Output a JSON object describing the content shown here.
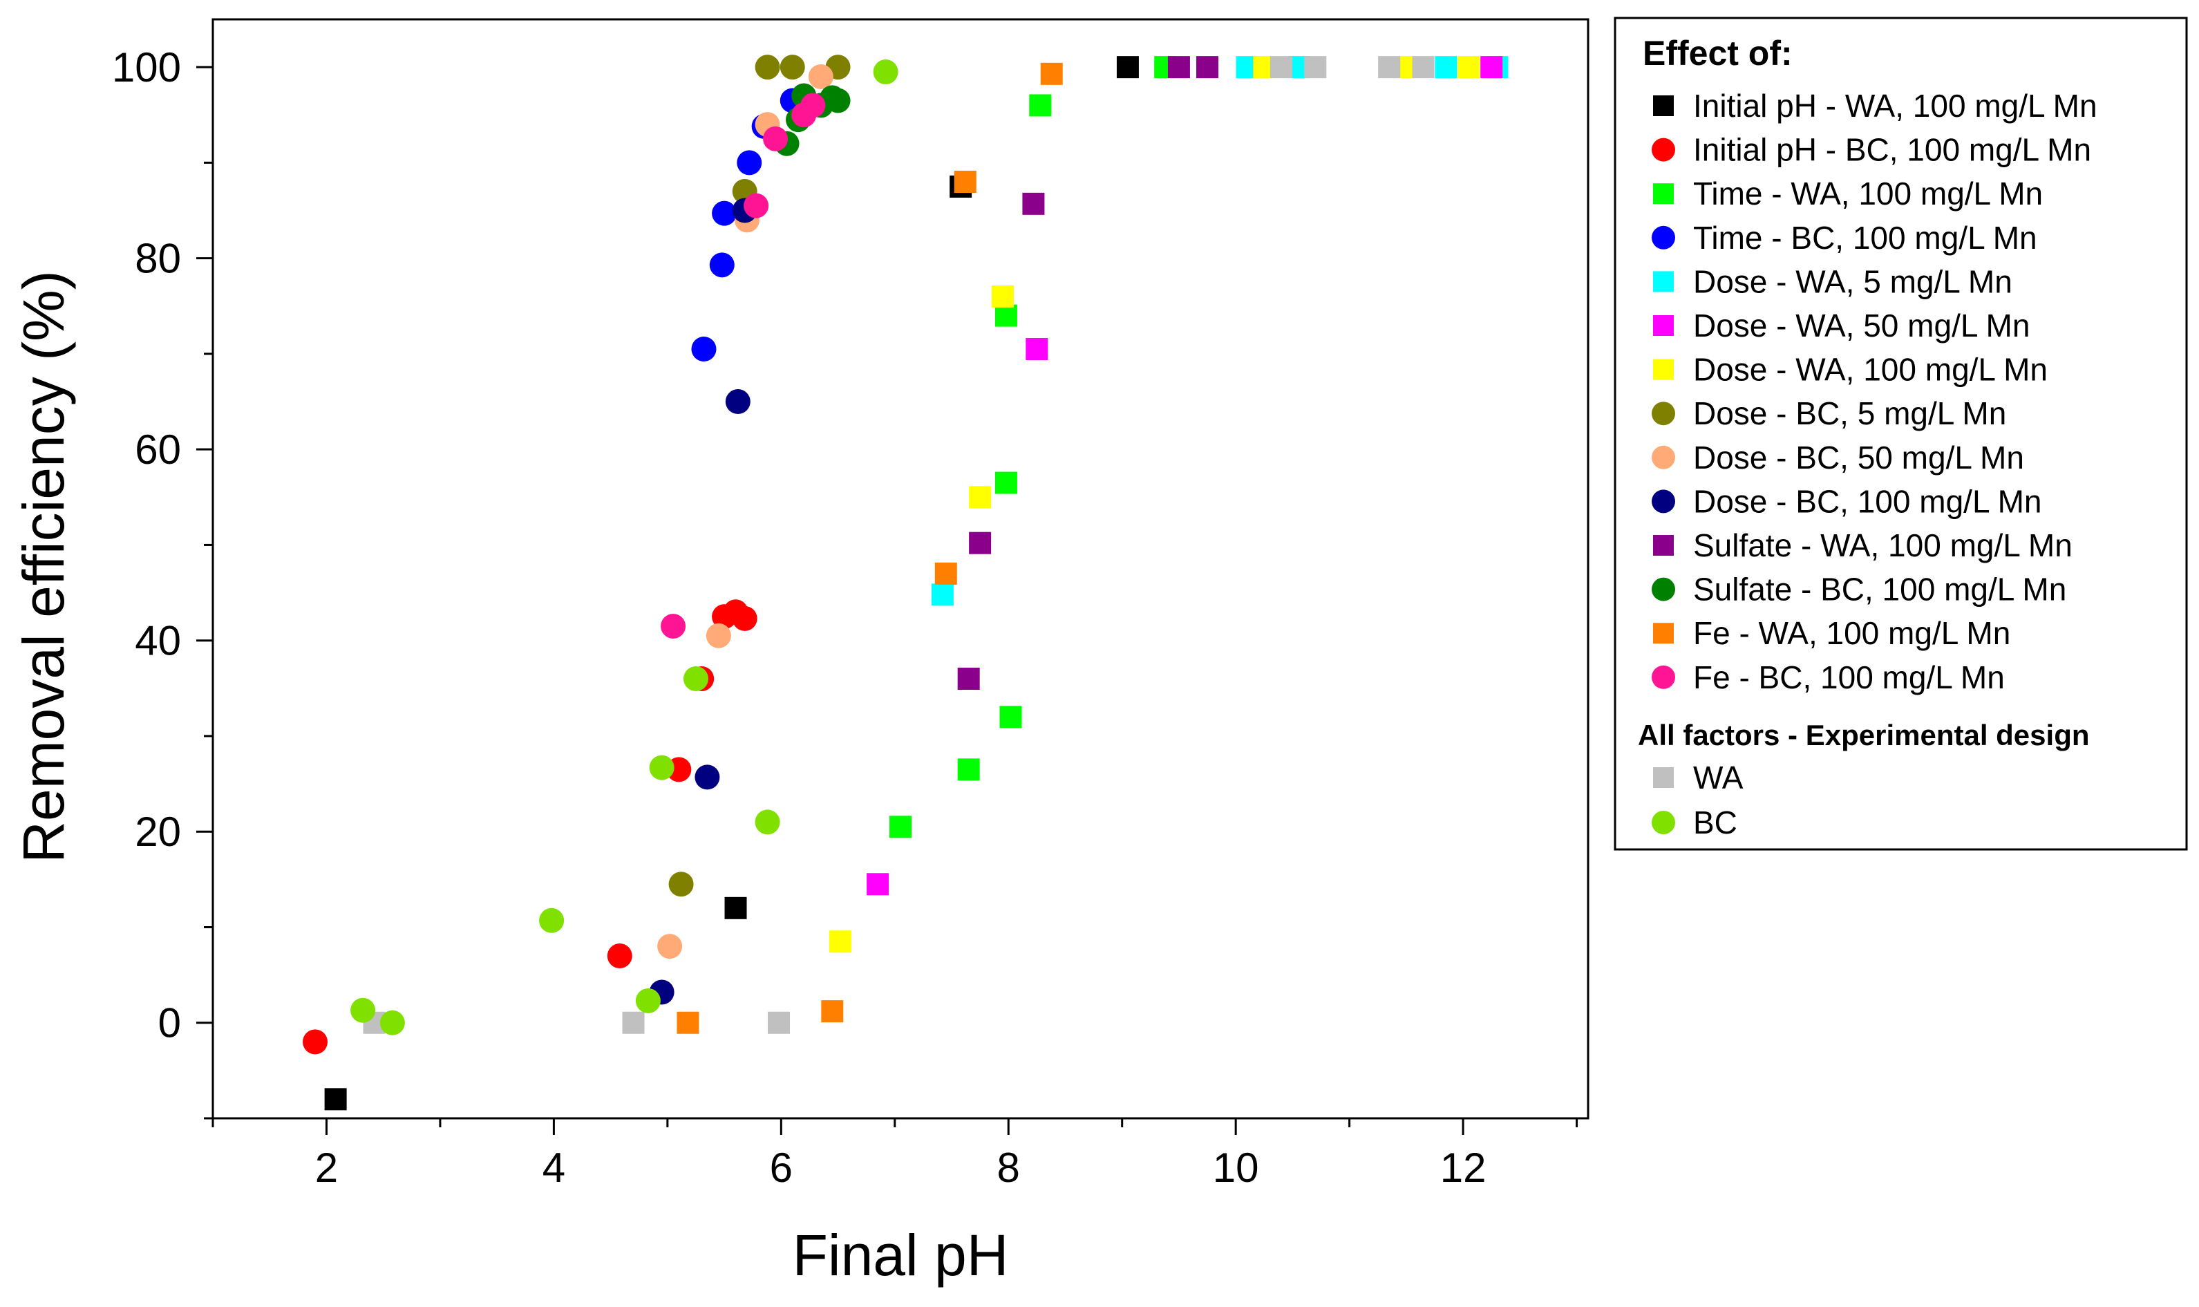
{
  "chart_data": {
    "type": "scatter",
    "xlabel": "Final pH",
    "ylabel": "Removal efficiency (%)",
    "xlim": [
      1,
      13.1
    ],
    "ylim": [
      -10,
      105
    ],
    "x_ticks": [
      2,
      4,
      6,
      8,
      10,
      12
    ],
    "x_tick_labels": [
      "2",
      "4",
      "6",
      "8",
      "10",
      "12"
    ],
    "y_ticks": [
      0,
      20,
      40,
      60,
      80,
      100
    ],
    "y_tick_labels": [
      "0",
      "20",
      "40",
      "60",
      "80",
      "100"
    ],
    "grid": false,
    "legend_position": "right-outside",
    "legend_title": "Effect of:",
    "legend_subtitle": "All factors - Experimental design",
    "series": [
      {
        "name": "Initial pH - WA, 100 mg/L Mn",
        "marker": "square",
        "color": "#000000",
        "points": [
          [
            2.08,
            -8
          ],
          [
            5.6,
            12
          ],
          [
            7.58,
            87.5
          ],
          [
            9.05,
            100
          ]
        ]
      },
      {
        "name": "Initial pH - BC, 100 mg/L Mn",
        "marker": "circle",
        "color": "#ff0000",
        "points": [
          [
            1.9,
            -2
          ],
          [
            4.58,
            7
          ],
          [
            5.1,
            26.5
          ],
          [
            5.3,
            36
          ],
          [
            5.5,
            42.5
          ],
          [
            5.6,
            43
          ],
          [
            5.68,
            42.3
          ]
        ]
      },
      {
        "name": "Time - WA, 100 mg/L Mn",
        "marker": "square",
        "color": "#00ff00",
        "points": [
          [
            7.05,
            20.5
          ],
          [
            7.65,
            26.5
          ],
          [
            8.02,
            32
          ],
          [
            7.98,
            56.5
          ],
          [
            7.98,
            74
          ],
          [
            8.28,
            96
          ],
          [
            9.38,
            100
          ]
        ]
      },
      {
        "name": "Time - BC, 100 mg/L Mn",
        "marker": "circle",
        "color": "#0000ff",
        "points": [
          [
            5.32,
            70.5
          ],
          [
            5.48,
            79.3
          ],
          [
            5.5,
            84.7
          ],
          [
            5.72,
            90
          ],
          [
            5.85,
            93.8
          ],
          [
            6.1,
            96.5
          ],
          [
            6.2,
            97
          ]
        ]
      },
      {
        "name": "Dose - WA, 5 mg/L Mn",
        "marker": "square",
        "color": "#00ffff",
        "points": [
          [
            7.42,
            44.8
          ],
          [
            10.1,
            100
          ],
          [
            10.55,
            100
          ],
          [
            11.85,
            100
          ],
          [
            12.3,
            100
          ]
        ]
      },
      {
        "name": "Dose - WA, 50 mg/L Mn",
        "marker": "square",
        "color": "#ff00ff",
        "points": [
          [
            6.85,
            14.5
          ],
          [
            8.25,
            70.5
          ],
          [
            12.25,
            100
          ]
        ]
      },
      {
        "name": "Dose - WA, 100 mg/L Mn",
        "marker": "square",
        "color": "#ffff00",
        "points": [
          [
            6.52,
            8.5
          ],
          [
            7.75,
            55
          ],
          [
            7.95,
            76
          ],
          [
            10.25,
            100
          ],
          [
            11.5,
            100
          ],
          [
            12.05,
            100
          ]
        ]
      },
      {
        "name": "Dose - BC, 5 mg/L Mn",
        "marker": "circle",
        "color": "#808000",
        "points": [
          [
            5.12,
            14.5
          ],
          [
            5.68,
            87
          ],
          [
            5.88,
            100
          ],
          [
            6.1,
            100
          ],
          [
            6.5,
            100
          ]
        ]
      },
      {
        "name": "Dose - BC, 50 mg/L Mn",
        "marker": "circle",
        "color": "#ffaa77",
        "points": [
          [
            5.02,
            8
          ],
          [
            5.45,
            40.5
          ],
          [
            5.7,
            84
          ],
          [
            5.88,
            94
          ],
          [
            6.35,
            99
          ]
        ]
      },
      {
        "name": "Dose - BC, 100 mg/L Mn",
        "marker": "circle",
        "color": "#000080",
        "points": [
          [
            4.95,
            3.2
          ],
          [
            5.35,
            25.7
          ],
          [
            5.62,
            65
          ],
          [
            5.68,
            85
          ]
        ]
      },
      {
        "name": "Sulfate - WA, 100 mg/L Mn",
        "marker": "square",
        "color": "#8b008b",
        "points": [
          [
            7.65,
            36
          ],
          [
            7.75,
            50.2
          ],
          [
            8.22,
            85.7
          ],
          [
            9.5,
            100
          ],
          [
            9.75,
            100
          ]
        ]
      },
      {
        "name": "Sulfate - BC, 100 mg/L Mn",
        "marker": "circle",
        "color": "#008000",
        "points": [
          [
            6.05,
            92
          ],
          [
            6.15,
            94.5
          ],
          [
            6.2,
            97
          ],
          [
            6.35,
            96
          ],
          [
            6.45,
            96.8
          ],
          [
            6.5,
            96.5
          ]
        ]
      },
      {
        "name": "Fe - WA, 100 mg/L Mn",
        "marker": "square",
        "color": "#ff8000",
        "points": [
          [
            5.18,
            0
          ],
          [
            6.45,
            1.2
          ],
          [
            7.45,
            47
          ],
          [
            7.62,
            88
          ],
          [
            8.38,
            99.3
          ]
        ]
      },
      {
        "name": "Fe - BC, 100 mg/L Mn",
        "marker": "circle",
        "color": "#ff1493",
        "points": [
          [
            5.05,
            41.5
          ],
          [
            5.78,
            85.5
          ],
          [
            5.95,
            92.5
          ],
          [
            6.2,
            95
          ],
          [
            6.28,
            96
          ]
        ]
      },
      {
        "name": "WA",
        "marker": "square",
        "color": "#c0c0c0",
        "points": [
          [
            2.42,
            0
          ],
          [
            4.7,
            0
          ],
          [
            5.98,
            0
          ],
          [
            10.4,
            100
          ],
          [
            10.7,
            100
          ],
          [
            11.35,
            100
          ],
          [
            11.65,
            100
          ]
        ]
      },
      {
        "name": "BC",
        "marker": "circle",
        "color": "#80e000",
        "points": [
          [
            2.32,
            1.3
          ],
          [
            2.58,
            0
          ],
          [
            3.98,
            10.7
          ],
          [
            4.83,
            2.3
          ],
          [
            4.95,
            26.7
          ],
          [
            5.25,
            36
          ],
          [
            5.88,
            21
          ],
          [
            6.92,
            99.5
          ]
        ]
      }
    ]
  }
}
